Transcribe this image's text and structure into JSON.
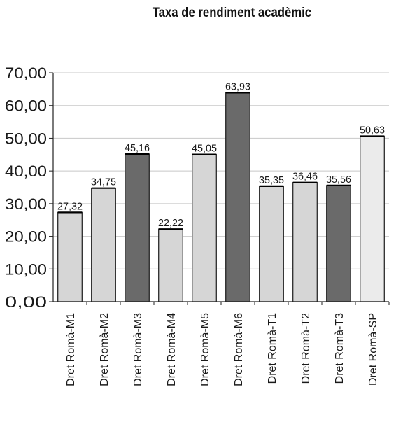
{
  "chart_data": {
    "type": "bar",
    "title": "Taxa de rendiment acadèmic",
    "xlabel": "",
    "ylabel": "",
    "ylim": [
      0,
      70
    ],
    "yticks": [
      "0,00",
      "10,00",
      "20,00",
      "30,00",
      "40,00",
      "50,00",
      "60,00",
      "70,00"
    ],
    "grid": true,
    "categories": [
      "Dret Romà-M1",
      "Dret Romà-M2",
      "Dret Romà-M3",
      "Dret Romà-M4",
      "Dret Romà-M5",
      "Dret Romà-M6",
      "Dret Romà-T1",
      "Dret Romà-T2",
      "Dret Romà-T3",
      "Dret Romà-SP"
    ],
    "values": [
      27.32,
      34.75,
      45.16,
      22.22,
      45.05,
      63.93,
      35.35,
      36.46,
      35.56,
      50.63
    ],
    "value_labels": [
      "27,32",
      "34,75",
      "45,16",
      "22,22",
      "45,05",
      "63,93",
      "35,35",
      "36,46",
      "35,56",
      "50,63"
    ],
    "bar_colors": [
      "#d6d6d6",
      "#d6d6d6",
      "#6a6a6a",
      "#d6d6d6",
      "#d6d6d6",
      "#6a6a6a",
      "#d6d6d6",
      "#d6d6d6",
      "#6a6a6a",
      "#ebebeb"
    ]
  }
}
